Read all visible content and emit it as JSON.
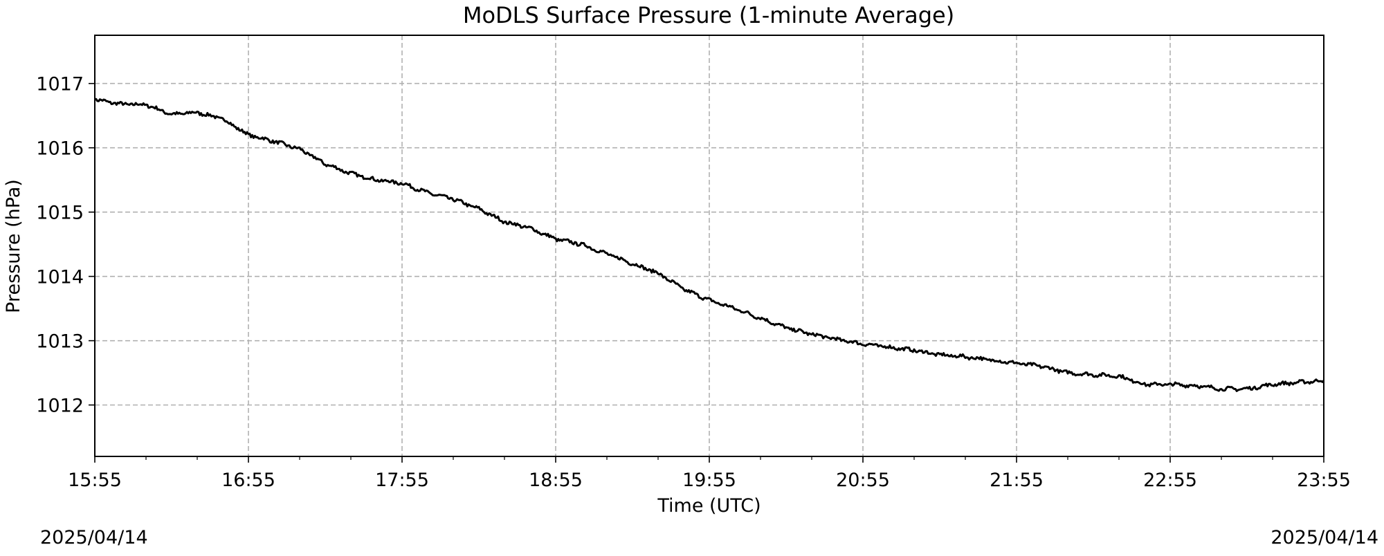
{
  "chart_data": {
    "type": "line",
    "title": "MoDLS Surface Pressure (1-minute Average)",
    "xlabel": "Time (UTC)",
    "ylabel": "Pressure (hPa)",
    "x_range": [
      "15:55",
      "23:55"
    ],
    "ylim": [
      1011.2,
      1017.75
    ],
    "x_ticks": [
      "15:55",
      "16:55",
      "17:55",
      "18:55",
      "19:55",
      "20:55",
      "21:55",
      "22:55",
      "23:55"
    ],
    "y_ticks": [
      1012,
      1013,
      1014,
      1015,
      1016,
      1017
    ],
    "date_left": "2025/04/14",
    "date_right": "2025/04/14",
    "grid": true,
    "grid_style": "dashed",
    "line_color": "#000000",
    "grid_color": "#b0b0b0",
    "series": [
      {
        "x": [
          "15:55",
          "16:05",
          "16:15",
          "16:25",
          "16:35",
          "16:45",
          "16:55",
          "17:05",
          "17:15",
          "17:25",
          "17:35",
          "17:45",
          "17:55",
          "18:05",
          "18:15",
          "18:25",
          "18:35",
          "18:45",
          "18:55",
          "19:05",
          "19:15",
          "19:25",
          "19:35",
          "19:45",
          "19:55",
          "20:05",
          "20:15",
          "20:25",
          "20:35",
          "20:45",
          "20:55",
          "21:05",
          "21:15",
          "21:25",
          "21:35",
          "21:45",
          "21:55",
          "22:05",
          "22:15",
          "22:25",
          "22:35",
          "22:45",
          "22:55",
          "23:05",
          "23:15",
          "23:25",
          "23:35",
          "23:45",
          "23:55"
        ],
        "values": [
          1016.75,
          1016.68,
          1016.67,
          1016.52,
          1016.55,
          1016.45,
          1016.2,
          1016.1,
          1015.98,
          1015.75,
          1015.6,
          1015.5,
          1015.45,
          1015.3,
          1015.2,
          1015.05,
          1014.85,
          1014.75,
          1014.58,
          1014.5,
          1014.35,
          1014.2,
          1014.05,
          1013.8,
          1013.63,
          1013.5,
          1013.35,
          1013.2,
          1013.1,
          1013.02,
          1012.95,
          1012.9,
          1012.85,
          1012.78,
          1012.75,
          1012.7,
          1012.65,
          1012.6,
          1012.5,
          1012.47,
          1012.45,
          1012.32,
          1012.32,
          1012.3,
          1012.25,
          1012.25,
          1012.32,
          1012.35,
          1012.38
        ]
      }
    ]
  }
}
